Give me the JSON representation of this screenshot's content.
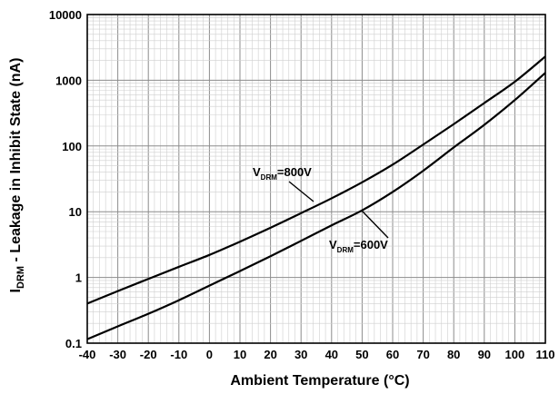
{
  "chart_data": {
    "type": "line",
    "xlabel": "Ambient Temperature  (°C)",
    "ylabel": {
      "prefix": "I",
      "sub": "DRM",
      "suffix": " -  Leakage in Inhibit State  (nA)"
    },
    "x_ticks": [
      "-40",
      "-30",
      "-20",
      "-10",
      "0",
      "10",
      "20",
      "30",
      "40",
      "50",
      "60",
      "70",
      "80",
      "90",
      "100",
      "110"
    ],
    "y_ticks": [
      "0.1",
      "1",
      "10",
      "100",
      "1000",
      "10000"
    ],
    "xlim": [
      -40,
      110
    ],
    "ylim": [
      0.1,
      10000
    ],
    "y_scale": "log",
    "grid": true,
    "series": [
      {
        "name": {
          "prefix": "V",
          "sub": "DRM",
          "suffix": "=800V"
        },
        "x": [
          -40,
          -30,
          -20,
          -10,
          0,
          10,
          20,
          30,
          40,
          50,
          60,
          70,
          80,
          90,
          100,
          110
        ],
        "y": [
          0.4,
          0.62,
          0.95,
          1.45,
          2.2,
          3.5,
          5.7,
          9.5,
          16,
          28,
          52,
          105,
          215,
          450,
          950,
          2300
        ]
      },
      {
        "name": {
          "prefix": "V",
          "sub": "DRM",
          "suffix": "=600V"
        },
        "x": [
          -40,
          -30,
          -20,
          -10,
          0,
          10,
          20,
          30,
          40,
          50,
          60,
          70,
          80,
          90,
          100,
          110
        ],
        "y": [
          0.115,
          0.18,
          0.28,
          0.45,
          0.75,
          1.25,
          2.1,
          3.6,
          6.2,
          10.5,
          20,
          42,
          95,
          210,
          500,
          1300
        ]
      }
    ]
  }
}
